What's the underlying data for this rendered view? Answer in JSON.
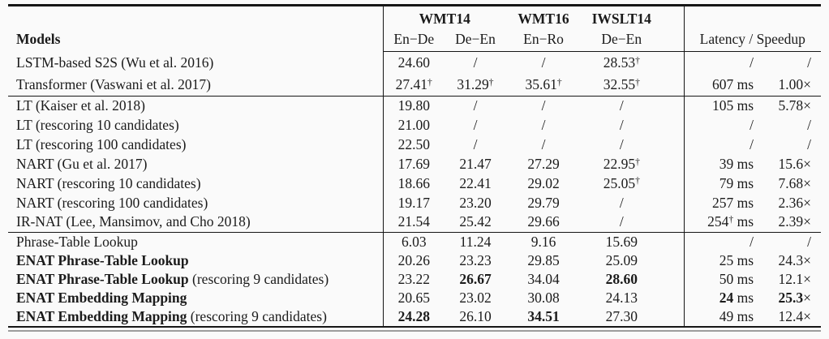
{
  "colors": {
    "ink": "#1b1b1b",
    "rule": "#161616",
    "background": "#fafafa"
  },
  "table": {
    "header": {
      "models_label": "Models",
      "groups": [
        {
          "label": "WMT14"
        },
        {
          "label": "WMT16"
        },
        {
          "label": "IWSLT14"
        }
      ],
      "subcolumns": [
        "En−De",
        "De−En",
        "En−Ro",
        "De−En"
      ],
      "latency_label": "Latency / Speedup"
    },
    "groups": [
      {
        "rows": [
          {
            "model": "LSTM-based S2S (Wu et al. 2016)",
            "bleu": [
              "24.60",
              "/",
              "/",
              "28.53†"
            ],
            "latency": "/",
            "speedup": "/"
          },
          {
            "model": "Transformer (Vaswani et al. 2017)",
            "bleu": [
              "27.41†",
              "31.29†",
              "35.61†",
              "32.55†"
            ],
            "latency": "607 ms",
            "speedup": "1.00×"
          }
        ]
      },
      {
        "rows": [
          {
            "model": "LT (Kaiser et al. 2018)",
            "bleu": [
              "19.80",
              "/",
              "/",
              "/"
            ],
            "latency": "105 ms",
            "speedup": "5.78×"
          },
          {
            "model": "LT (rescoring 10 candidates)",
            "bleu": [
              "21.00",
              "/",
              "/",
              "/"
            ],
            "latency": "/",
            "speedup": "/"
          },
          {
            "model": "LT (rescoring 100 candidates)",
            "bleu": [
              "22.50",
              "/",
              "/",
              "/"
            ],
            "latency": "/",
            "speedup": "/"
          },
          {
            "model": "NART (Gu et al. 2017)",
            "bleu": [
              "17.69",
              "21.47",
              "27.29",
              "22.95†"
            ],
            "latency": "39 ms",
            "speedup": "15.6×"
          },
          {
            "model": "NART (rescoring 10 candidates)",
            "bleu": [
              "18.66",
              "22.41",
              "29.02",
              "25.05†"
            ],
            "latency": "79 ms",
            "speedup": "7.68×"
          },
          {
            "model": "NART (rescoring 100 candidates)",
            "bleu": [
              "19.17",
              "23.20",
              "29.79",
              "/"
            ],
            "latency": "257 ms",
            "speedup": "2.36×"
          },
          {
            "model": "IR-NAT (Lee, Mansimov, and Cho 2018)",
            "bleu": [
              "21.54",
              "25.42",
              "29.66",
              "/"
            ],
            "latency": "254† ms",
            "speedup": "2.39×"
          }
        ]
      },
      {
        "rows": [
          {
            "model": "Phrase-Table Lookup",
            "bleu": [
              "6.03",
              "11.24",
              "9.16",
              "15.69"
            ],
            "latency": "/",
            "speedup": "/"
          },
          {
            "model": [
              {
                "t": "ENAT Phrase-Table Lookup",
                "b": true
              }
            ],
            "bleu": [
              "20.26",
              "23.23",
              "29.85",
              "25.09"
            ],
            "latency": "25 ms",
            "speedup": "24.3×"
          },
          {
            "model": [
              {
                "t": "ENAT Phrase-Table Lookup",
                "b": true
              },
              {
                "t": " (rescoring 9 candidates)"
              }
            ],
            "bleu": [
              "23.22",
              {
                "t": "26.67",
                "b": true
              },
              "34.04",
              {
                "t": "28.60",
                "b": true
              }
            ],
            "latency": "50 ms",
            "speedup": "12.1×"
          },
          {
            "model": [
              {
                "t": "ENAT Embedding Mapping",
                "b": true
              }
            ],
            "bleu": [
              "20.65",
              "23.02",
              "30.08",
              "24.13"
            ],
            "latency": [
              {
                "t": "24",
                "b": true
              },
              {
                "t": " ms"
              }
            ],
            "speedup": [
              {
                "t": "25.3",
                "b": true
              },
              {
                "t": "×"
              }
            ]
          },
          {
            "model": [
              {
                "t": "ENAT Embedding Mapping",
                "b": true
              },
              {
                "t": " (rescoring 9 candidates)"
              }
            ],
            "bleu": [
              {
                "t": "24.28",
                "b": true
              },
              "26.10",
              {
                "t": "34.51",
                "b": true
              },
              "27.30"
            ],
            "latency": "49 ms",
            "speedup": "12.4×"
          }
        ]
      }
    ]
  }
}
